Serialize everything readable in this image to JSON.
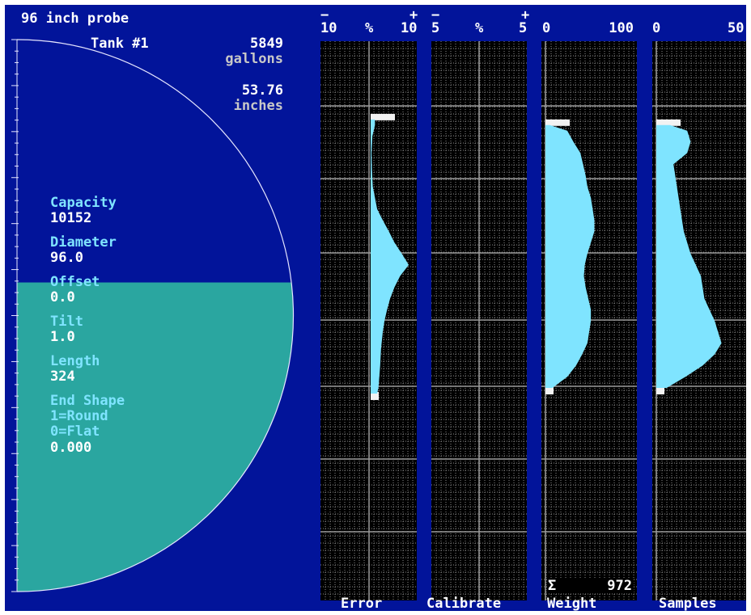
{
  "header": {
    "probe_label": "96 inch probe",
    "tank_name": "Tank #1",
    "volume_value": "5849",
    "volume_unit": "gallons",
    "level_value": "53.76",
    "level_unit": "inches"
  },
  "tank": {
    "fill_fraction": 0.56,
    "liquid_color": "#2aa6a0",
    "empty_color": "#02149a"
  },
  "params": [
    {
      "label": "Capacity",
      "value": "10152"
    },
    {
      "label": "Diameter",
      "value": "96.0"
    },
    {
      "label": "Offset",
      "value": "0.0"
    },
    {
      "label": "Tilt",
      "value": "1.0"
    },
    {
      "label": "Length",
      "value": "324"
    },
    {
      "label": "End Shape",
      "value": "1=Round"
    },
    {
      "label": "",
      "value": "0=Flat"
    },
    {
      "label": "",
      "value": "0.000"
    }
  ],
  "panels": [
    {
      "name": "Error",
      "scale": {
        "left_sign": "−",
        "right_sign": "+",
        "left": "10",
        "mid": "%",
        "right": "10"
      },
      "profile_color": "#7fe4ff",
      "profile": [
        [
          0.14,
          0.1
        ],
        [
          0.15,
          0.1
        ],
        [
          0.17,
          0.04
        ],
        [
          0.2,
          0.02
        ],
        [
          0.23,
          0.03
        ],
        [
          0.26,
          0.05
        ],
        [
          0.28,
          0.1
        ],
        [
          0.3,
          0.15
        ],
        [
          0.32,
          0.28
        ],
        [
          0.34,
          0.42
        ],
        [
          0.36,
          0.55
        ],
        [
          0.38,
          0.72
        ],
        [
          0.4,
          0.88
        ],
        [
          0.42,
          0.68
        ],
        [
          0.44,
          0.55
        ],
        [
          0.46,
          0.45
        ],
        [
          0.48,
          0.38
        ],
        [
          0.5,
          0.32
        ],
        [
          0.52,
          0.28
        ],
        [
          0.55,
          0.24
        ],
        [
          0.58,
          0.22
        ],
        [
          0.6,
          0.2
        ],
        [
          0.62,
          0.18
        ],
        [
          0.63,
          0.15
        ]
      ]
    },
    {
      "name": "Calibrate",
      "scale": {
        "left_sign": "−",
        "right_sign": "+",
        "left": "5",
        "mid": "%",
        "right": "5"
      },
      "profile_color": "#7fe4ff",
      "profile": []
    },
    {
      "name": "Weight",
      "scale": {
        "left_sign": "",
        "right_sign": "",
        "left": "0",
        "mid": "",
        "right": "100"
      },
      "profile_color": "#7fe4ff",
      "profile": [
        [
          0.15,
          5
        ],
        [
          0.16,
          25
        ],
        [
          0.18,
          32
        ],
        [
          0.2,
          40
        ],
        [
          0.22,
          43
        ],
        [
          0.24,
          46
        ],
        [
          0.26,
          48
        ],
        [
          0.28,
          52
        ],
        [
          0.3,
          54
        ],
        [
          0.32,
          56
        ],
        [
          0.34,
          56
        ],
        [
          0.36,
          52
        ],
        [
          0.38,
          48
        ],
        [
          0.4,
          45
        ],
        [
          0.42,
          44
        ],
        [
          0.44,
          46
        ],
        [
          0.46,
          49
        ],
        [
          0.48,
          52
        ],
        [
          0.5,
          52
        ],
        [
          0.52,
          50
        ],
        [
          0.54,
          48
        ],
        [
          0.56,
          42
        ],
        [
          0.58,
          35
        ],
        [
          0.6,
          25
        ],
        [
          0.62,
          8
        ]
      ],
      "sum_symbol": "Σ",
      "sum_value": "972"
    },
    {
      "name": "Samples",
      "scale": {
        "left_sign": "",
        "right_sign": "",
        "left": "0",
        "mid": "",
        "right": "50"
      },
      "profile_color": "#7fe4ff",
      "profile": [
        [
          0.15,
          8
        ],
        [
          0.16,
          18
        ],
        [
          0.18,
          20
        ],
        [
          0.2,
          18
        ],
        [
          0.22,
          10
        ],
        [
          0.24,
          11
        ],
        [
          0.26,
          12
        ],
        [
          0.28,
          13
        ],
        [
          0.3,
          14
        ],
        [
          0.32,
          15
        ],
        [
          0.34,
          16
        ],
        [
          0.36,
          18
        ],
        [
          0.38,
          20
        ],
        [
          0.4,
          23
        ],
        [
          0.42,
          26
        ],
        [
          0.44,
          27
        ],
        [
          0.46,
          28
        ],
        [
          0.48,
          31
        ],
        [
          0.5,
          34
        ],
        [
          0.52,
          36
        ],
        [
          0.54,
          38
        ],
        [
          0.56,
          34
        ],
        [
          0.58,
          27
        ],
        [
          0.6,
          17
        ],
        [
          0.62,
          6
        ]
      ]
    }
  ]
}
